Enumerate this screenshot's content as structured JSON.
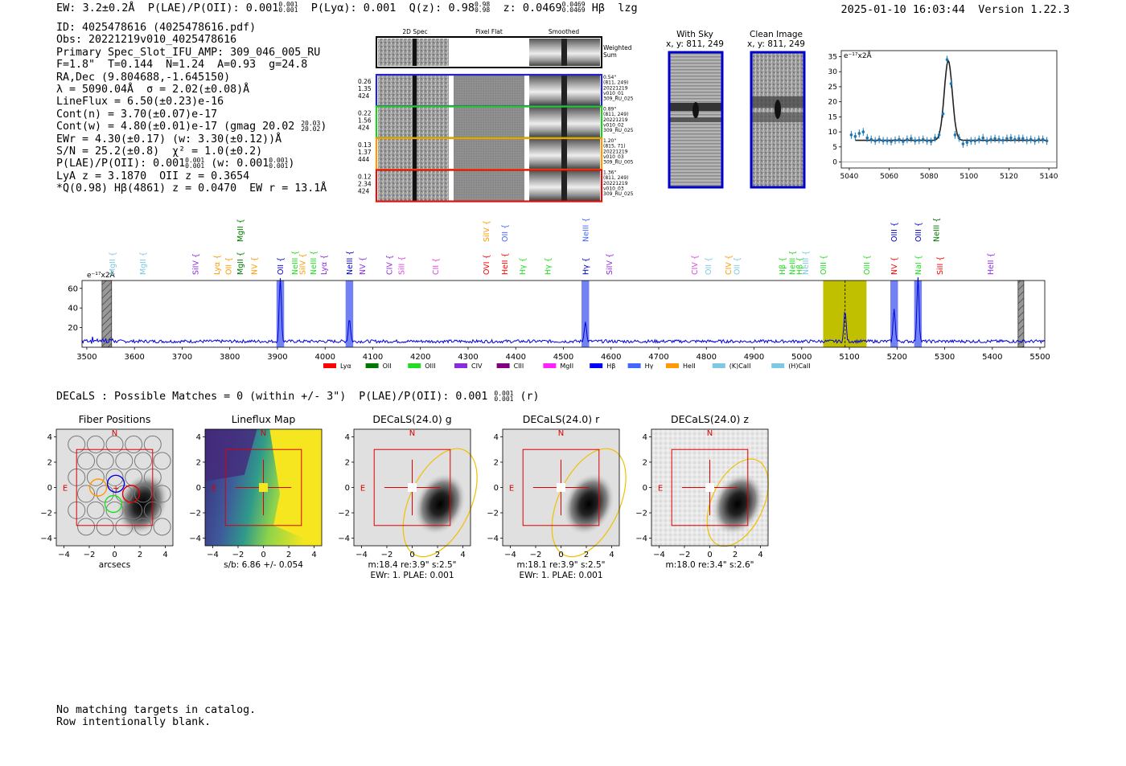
{
  "header": {
    "ew_label": "EW: 3.2±0.2Å",
    "plae_label": "P(LAE)/P(OII): 0.001",
    "plae_up": "0.001",
    "plae_lo": "0.001",
    "plya_label": "P(Lyα): 0.001",
    "qz_label": "Q(z): 0.98",
    "qz_up": "0.98",
    "qz_lo": "0.98",
    "z_label": "z: 0.0469",
    "z_up": "0.0469",
    "z_lo": "0.0469",
    "line_label": "Hβ",
    "flag": "lzg",
    "datestamp": "2025-01-10 16:03:44",
    "version": "Version 1.22.3"
  },
  "info": {
    "id": "ID: 4025478616 (4025478616.pdf)",
    "obs": "Obs: 20221219v010_4025478616",
    "primary": "Primary Spec_Slot_IFU_AMP: 309_046_005_RU",
    "params": "F=1.8\"  T=0.144  N=1.24  A=0.93  g=24.8",
    "radec": "RA,Dec (9.804688,-1.645150)",
    "lambda": "λ = 5090.04Å  σ = 2.02(±0.08)Å",
    "lineflux": "LineFlux = 6.50(±0.23)e-16",
    "contn": "Cont(n) = 3.70(±0.07)e-17",
    "contw": "Cont(w) = 4.80(±0.01)e-17 (gmag 20.02",
    "contw_up": "20.03",
    "contw_lo": "20.02",
    "ewr": "EWr = 4.30(±0.17) (w: 3.30(±0.12))Å",
    "sn": "S/N = 25.2(±0.8)  χ² = 1.0(±0.2)",
    "plae": "P(LAE)/P(OII): 0.001",
    "plae_up": "0.001",
    "plae_lo": "0.001",
    "plae_w": "(w: 0.001",
    "plae_w_up": "0.001",
    "plae_w_lo": "0.001",
    "lya": "LyA z = 3.1870  OII z = 0.3654",
    "q": "*Q(0.98) Hβ(4861) z = 0.0470  EW r = 13.1Å"
  },
  "cutouts": {
    "col_2d": "2D Spec",
    "col_flat": "Pixel Flat",
    "col_smooth": "Smoothed",
    "weighted": "Weighted Sum",
    "rows": [
      {
        "w1": "0.26",
        "w2": "1.35",
        "w3": "424",
        "offset": "0.54\"",
        "xy": "(811, 249)",
        "date": "20221219",
        "obs": "v010_01",
        "amp": "309_RU_025",
        "color": "#2222cc"
      },
      {
        "w1": "0.22",
        "w2": "1.56",
        "w3": "424",
        "offset": "0.89\"",
        "xy": "(811, 249)",
        "date": "20221219",
        "obs": "v010_02",
        "amp": "309_RU_025",
        "color": "#22cc22"
      },
      {
        "w1": "0.13",
        "w2": "1.37",
        "w3": "444",
        "offset": "1.20\"",
        "xy": "(815, 71)",
        "date": "20221219",
        "obs": "v010_03",
        "amp": "309_RU_005",
        "color": "#ff9900"
      },
      {
        "w1": "0.12",
        "w2": "2.34",
        "w3": "424",
        "offset": "1.36\"",
        "xy": "(811, 249)",
        "date": "20221219",
        "obs": "v010_03",
        "amp": "309_RU_025",
        "color": "#dd1111"
      }
    ],
    "sky_title": "With Sky",
    "sky_xy": "x, y: 811, 249",
    "clean_title": "Clean Image",
    "clean_xy": "x, y: 811, 249"
  },
  "line_fit": {
    "type": "scatter",
    "ylabel": "e⁻¹⁷x2Å",
    "xlim": [
      5036,
      5144
    ],
    "ylim": [
      -2,
      37
    ],
    "xticks": [
      5040,
      5060,
      5080,
      5100,
      5120,
      5140
    ],
    "yticks": [
      0,
      5,
      10,
      15,
      20,
      25,
      30,
      35
    ],
    "points_x": [
      5041,
      5043,
      5045,
      5047,
      5049,
      5051,
      5053,
      5055,
      5057,
      5059,
      5061,
      5063,
      5065,
      5067,
      5069,
      5071,
      5073,
      5075,
      5077,
      5079,
      5081,
      5083,
      5085,
      5087,
      5089,
      5091,
      5093,
      5095,
      5097,
      5099,
      5101,
      5103,
      5105,
      5107,
      5109,
      5111,
      5113,
      5115,
      5117,
      5119,
      5121,
      5123,
      5125,
      5127,
      5129,
      5131,
      5133,
      5135,
      5137,
      5139
    ],
    "points_y": [
      9,
      8.5,
      9.5,
      10,
      8,
      7.5,
      7,
      7.5,
      7,
      7,
      6.8,
      7.2,
      7.5,
      6.8,
      7.5,
      7.8,
      7,
      7.2,
      7.5,
      7,
      6.8,
      8,
      9,
      16,
      34,
      26,
      9,
      8,
      6,
      6.5,
      7,
      7,
      7.5,
      8,
      7,
      7.5,
      7.8,
      7.5,
      7.2,
      7.8,
      8,
      7.5,
      7.8,
      7.8,
      7.2,
      7.5,
      7,
      7.5,
      7.5,
      7
    ],
    "point_color": "#1f77b4",
    "fit_color": "#222222"
  },
  "spectrum": {
    "type": "line",
    "ylabel": "e⁻¹⁷x2Å",
    "xlim": [
      3490,
      5510
    ],
    "ylim": [
      0,
      68
    ],
    "xticks": [
      3500,
      3600,
      3700,
      3800,
      3900,
      4000,
      4100,
      4200,
      4300,
      4400,
      4500,
      4600,
      4700,
      4800,
      4900,
      5000,
      5100,
      5200,
      5300,
      5400,
      5500
    ],
    "yticks": [
      20,
      40,
      60
    ],
    "peaks": [
      {
        "w": 3906,
        "h": 66
      },
      {
        "w": 4051,
        "h": 24
      },
      {
        "w": 4546,
        "h": 21
      },
      {
        "w": 5091,
        "h": 32
      },
      {
        "w": 5194,
        "h": 34
      },
      {
        "w": 5244,
        "h": 66
      }
    ],
    "highlights": [
      {
        "w0": 3898,
        "w1": 3914,
        "kind": "blue"
      },
      {
        "w0": 4043,
        "w1": 4059,
        "kind": "blue"
      },
      {
        "w0": 4538,
        "w1": 4554,
        "kind": "blue"
      },
      {
        "w0": 5045,
        "w1": 5136,
        "kind": "olive"
      },
      {
        "w0": 5186,
        "w1": 5202,
        "kind": "blue"
      },
      {
        "w0": 5236,
        "w1": 5252,
        "kind": "blue"
      }
    ],
    "hatched": [
      {
        "w0": 3532,
        "w1": 3552
      },
      {
        "w0": 5454,
        "w1": 5466
      }
    ],
    "marker_line": 5091,
    "lines": [
      {
        "w": 3553,
        "label": "MgII",
        "color": "#7ec8e3",
        "tier": 0
      },
      {
        "w": 3617,
        "label": "MgII",
        "color": "#7ec8e3",
        "tier": 0
      },
      {
        "w": 3728,
        "label": "SiIV",
        "color": "#8a2be2",
        "tier": 0
      },
      {
        "w": 3773,
        "label": "Lyα",
        "color": "#ff9900",
        "tier": 0
      },
      {
        "w": 3797,
        "label": "OII",
        "color": "#ff9900",
        "tier": 0
      },
      {
        "w": 3822,
        "label": "MgII",
        "color": "#007700",
        "tier": 1
      },
      {
        "w": 3822,
        "label": "MgII",
        "color": "#007700",
        "tier": 0
      },
      {
        "w": 3851,
        "label": "NV",
        "color": "#ff9900",
        "tier": 0
      },
      {
        "w": 3906,
        "label": "OII",
        "color": "#0000cc",
        "tier": 0
      },
      {
        "w": 3936,
        "label": "NeIII",
        "color": "#22dd22",
        "tier": 0
      },
      {
        "w": 3952,
        "label": "SiIV",
        "color": "#ff9900",
        "tier": 0
      },
      {
        "w": 3975,
        "label": "NeIII",
        "color": "#22dd22",
        "tier": 0
      },
      {
        "w": 3997,
        "label": "Lyα",
        "color": "#8a2be2",
        "tier": 0
      },
      {
        "w": 4051,
        "label": "NeIII",
        "color": "#0000cc",
        "tier": 0
      },
      {
        "w": 4078,
        "label": "NV",
        "color": "#8a2be2",
        "tier": 0
      },
      {
        "w": 4135,
        "label": "CIV",
        "color": "#8a2be2",
        "tier": 0
      },
      {
        "w": 4160,
        "label": "SiII",
        "color": "#dd44dd",
        "tier": 0
      },
      {
        "w": 4232,
        "label": "CII",
        "color": "#dd44dd",
        "tier": 0
      },
      {
        "w": 4338,
        "label": "SiIV",
        "color": "#ff9900",
        "tier": 2
      },
      {
        "w": 4338,
        "label": "OVI",
        "color": "#ff0000",
        "tier": 0
      },
      {
        "w": 4377,
        "label": "OII",
        "color": "#4466ff",
        "tier": 2
      },
      {
        "w": 4377,
        "label": "HeII",
        "color": "#ff0000",
        "tier": 0
      },
      {
        "w": 4414,
        "label": "Hγ",
        "color": "#22dd22",
        "tier": 0
      },
      {
        "w": 4467,
        "label": "Hγ",
        "color": "#22dd22",
        "tier": 0
      },
      {
        "w": 4546,
        "label": "NeIII",
        "color": "#4466ff",
        "tier": 3
      },
      {
        "w": 4546,
        "label": "Hγ",
        "color": "#0000cc",
        "tier": 0
      },
      {
        "w": 4596,
        "label": "SiIV",
        "color": "#8a2be2",
        "tier": 0
      },
      {
        "w": 4775,
        "label": "CIV",
        "color": "#dd44dd",
        "tier": 0
      },
      {
        "w": 4804,
        "label": "OII",
        "color": "#7ec8e3",
        "tier": 0
      },
      {
        "w": 4846,
        "label": "CIV",
        "color": "#ff9900",
        "tier": 0
      },
      {
        "w": 4864,
        "label": "OII",
        "color": "#7ec8e3",
        "tier": 0
      },
      {
        "w": 4959,
        "label": "Hβ",
        "color": "#22dd22",
        "tier": 0
      },
      {
        "w": 4980,
        "label": "NeIII",
        "color": "#22dd22",
        "tier": 0
      },
      {
        "w": 4995,
        "label": "Hβ",
        "color": "#22dd22",
        "tier": 0
      },
      {
        "w": 5008,
        "label": "NeIII",
        "color": "#7ec8e3",
        "tier": 0
      },
      {
        "w": 5045,
        "label": "OIII",
        "color": "#22dd22",
        "tier": 0
      },
      {
        "w": 5136,
        "label": "OIII",
        "color": "#22dd22",
        "tier": 0
      },
      {
        "w": 5194,
        "label": "OIII",
        "color": "#0000cc",
        "tier": 2
      },
      {
        "w": 5194,
        "label": "NV",
        "color": "#ff0000",
        "tier": 0
      },
      {
        "w": 5244,
        "label": "OIII",
        "color": "#0000cc",
        "tier": 2
      },
      {
        "w": 5244,
        "label": "NaI",
        "color": "#22dd22",
        "tier": 0
      },
      {
        "w": 5282,
        "label": "NeIII",
        "color": "#007700",
        "tier": 2
      },
      {
        "w": 5290,
        "label": "SiII",
        "color": "#ff0000",
        "tier": 0
      },
      {
        "w": 5396,
        "label": "HeII",
        "color": "#8a2be2",
        "tier": 0
      }
    ],
    "legend": [
      {
        "label": "Lyα",
        "color": "#ff0000"
      },
      {
        "label": "OII",
        "color": "#007700"
      },
      {
        "label": "OIII",
        "color": "#22dd22"
      },
      {
        "label": "CIV",
        "color": "#8a2be2"
      },
      {
        "label": "CIII",
        "color": "#800080"
      },
      {
        "label": "MgII",
        "color": "#ff22ff"
      },
      {
        "label": "Hβ",
        "color": "#0000ff"
      },
      {
        "label": "Hγ",
        "color": "#4466ff"
      },
      {
        "label": "HeII",
        "color": "#ff9900"
      },
      {
        "label": "(K)CaII",
        "color": "#7ec8e3"
      },
      {
        "label": "(H)CaII",
        "color": "#7ec8e3"
      }
    ]
  },
  "decals": {
    "line": "DECaLS : Possible Matches = 0 (within +/- 3\")  P(LAE)/P(OII): 0.001",
    "line_up": "0.001",
    "line_lo": "0.001",
    "line_suffix": "(r)",
    "panels": [
      {
        "title": "Fiber Positions",
        "kind": "fiber",
        "cap1": "arcsecs",
        "cap2": ""
      },
      {
        "title": "Lineflux Map",
        "kind": "lineflux",
        "cap1": "s/b: 6.86 +/- 0.054",
        "cap2": ""
      },
      {
        "title": "DECaLS(24.0) g",
        "kind": "band",
        "cap1": "m:18.4  re:3.9\"  s:2.5\"",
        "cap2": "EWr: 1. PLAE: 0.001"
      },
      {
        "title": "DECaLS(24.0) r",
        "kind": "band",
        "cap1": "m:18.1  re:3.9\"  s:2.5\"",
        "cap2": "EWr: 1. PLAE: 0.001"
      },
      {
        "title": "DECaLS(24.0) z",
        "kind": "band",
        "cap1": "m:18.0  re:3.4\"  s:2.6\"",
        "cap2": ""
      }
    ],
    "ticks": [
      "−4",
      "−2",
      "0",
      "2",
      "4"
    ],
    "compass_n": "N",
    "compass_e": "E"
  },
  "footer": {
    "line1": "No matching targets in catalog.",
    "line2": "Row intentionally blank."
  }
}
